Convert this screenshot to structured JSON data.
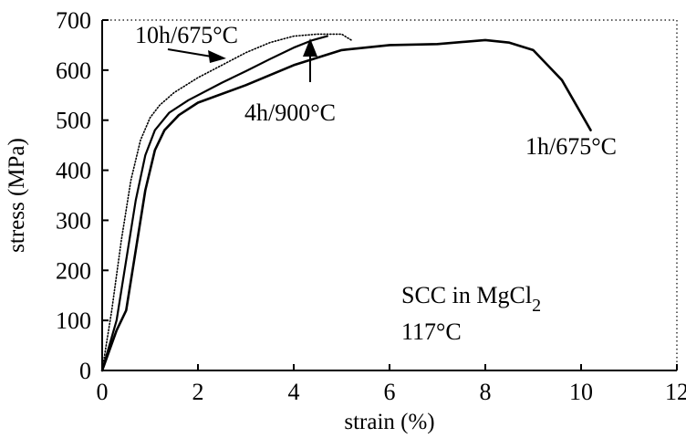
{
  "chart_data": {
    "type": "line",
    "title": "",
    "xlabel": "strain (%)",
    "ylabel": "stress (MPa)",
    "xlim": [
      0,
      12
    ],
    "ylim": [
      0,
      700
    ],
    "x_ticks": [
      "0",
      "2",
      "4",
      "6",
      "8",
      "10",
      "12"
    ],
    "y_ticks": [
      "0",
      "100",
      "200",
      "300",
      "400",
      "500",
      "600",
      "700"
    ],
    "grid": false,
    "series": [
      {
        "name": "10h/675°C",
        "x": [
          0,
          0.2,
          0.4,
          0.6,
          0.8,
          1.0,
          1.2,
          1.5,
          2.0,
          2.5,
          3.0,
          3.5,
          4.0,
          4.5,
          5.0,
          5.2
        ],
        "y": [
          0,
          120,
          260,
          380,
          460,
          505,
          530,
          555,
          585,
          610,
          635,
          655,
          668,
          672,
          672,
          660
        ]
      },
      {
        "name": "4h/900°C",
        "x": [
          0,
          0.3,
          0.5,
          0.7,
          0.9,
          1.1,
          1.4,
          1.8,
          2.5,
          3.0,
          3.5,
          4.0,
          4.4,
          4.7
        ],
        "y": [
          0,
          100,
          220,
          340,
          430,
          480,
          515,
          540,
          575,
          598,
          622,
          645,
          660,
          668
        ]
      },
      {
        "name": "1h/675°C",
        "x": [
          0,
          0.3,
          0.5,
          0.7,
          0.9,
          1.1,
          1.3,
          1.6,
          2.0,
          3.0,
          4.0,
          5.0,
          6.0,
          7.0,
          8.0,
          8.5,
          9.0,
          9.3,
          9.6,
          9.9,
          10.2
        ],
        "y": [
          0,
          80,
          120,
          240,
          360,
          440,
          480,
          510,
          535,
          570,
          610,
          640,
          650,
          652,
          660,
          655,
          640,
          610,
          580,
          530,
          480
        ]
      }
    ],
    "annotations": {
      "label_10h": "10h/675°C",
      "label_4h": "4h/900°C",
      "label_1h": "1h/675°C",
      "condition_line1": "SCC in MgCl",
      "condition_subscript": "2",
      "condition_line2": "117°C"
    }
  }
}
